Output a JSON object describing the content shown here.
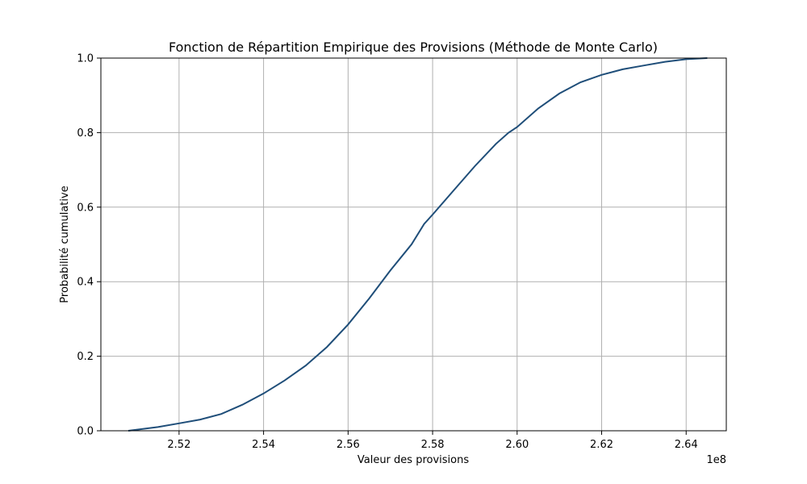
{
  "chart_data": {
    "type": "line",
    "title": "Fonction de Répartition Empirique des Provisions (Méthode de Monte Carlo)",
    "xlabel": "Valeur des provisions",
    "ylabel": "Probabilité cumulative",
    "x_offset_label": "1e8",
    "xlim": [
      2.5015,
      2.6495
    ],
    "ylim": [
      0,
      1
    ],
    "grid": true,
    "x_ticks": [
      2.52,
      2.54,
      2.56,
      2.58,
      2.6,
      2.62,
      2.64
    ],
    "x_tick_labels": [
      "2.52",
      "2.54",
      "2.56",
      "2.58",
      "2.60",
      "2.62",
      "2.64"
    ],
    "y_ticks": [
      0,
      0.2,
      0.4,
      0.6,
      0.8,
      1.0
    ],
    "y_tick_labels": [
      "0.0",
      "0.2",
      "0.4",
      "0.6",
      "0.8",
      "1.0"
    ],
    "color": "#1f4e79",
    "series": [
      {
        "x": [
          2.508,
          2.515,
          2.52,
          2.525,
          2.53,
          2.535,
          2.54,
          2.545,
          2.55,
          2.555,
          2.56,
          2.565,
          2.57,
          2.575,
          2.578,
          2.58,
          2.585,
          2.59,
          2.595,
          2.598,
          2.6,
          2.605,
          2.61,
          2.615,
          2.62,
          2.625,
          2.63,
          2.635,
          2.64,
          2.645
        ],
        "y": [
          0.0,
          0.01,
          0.02,
          0.03,
          0.045,
          0.07,
          0.1,
          0.135,
          0.175,
          0.225,
          0.285,
          0.355,
          0.43,
          0.5,
          0.555,
          0.58,
          0.645,
          0.71,
          0.77,
          0.8,
          0.815,
          0.865,
          0.905,
          0.935,
          0.955,
          0.97,
          0.98,
          0.99,
          0.997,
          1.0
        ]
      }
    ]
  }
}
